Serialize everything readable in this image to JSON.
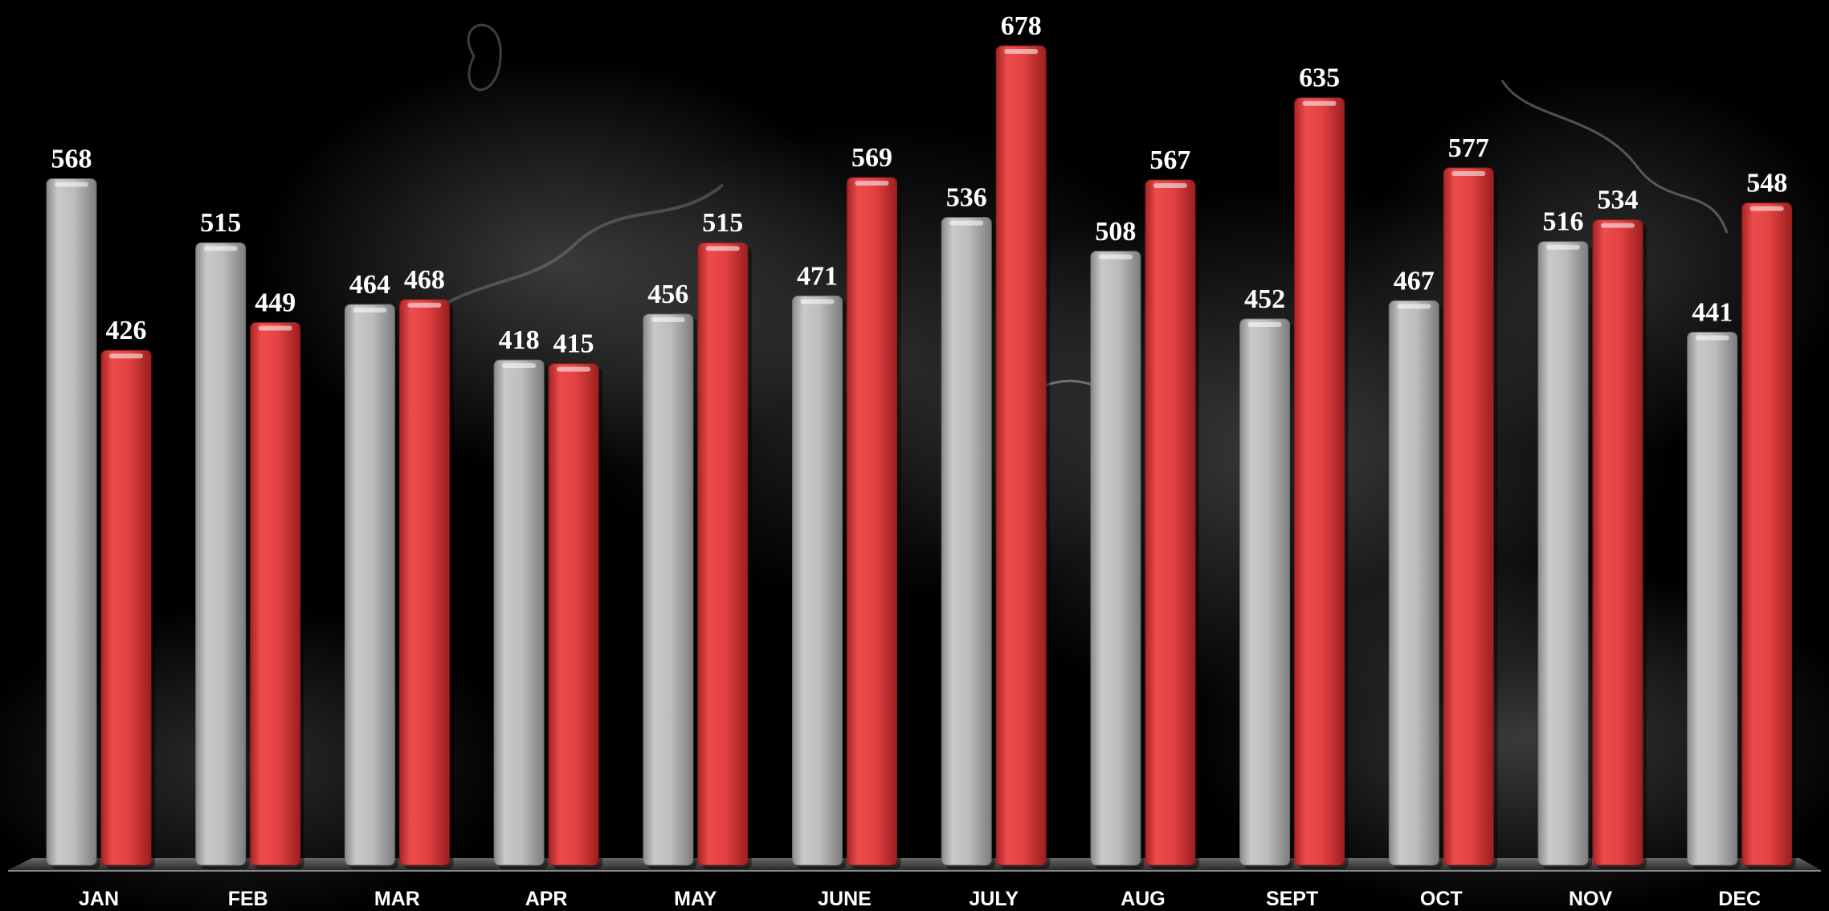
{
  "chart_data": {
    "type": "bar",
    "categories": [
      "JAN",
      "FEB",
      "MAR",
      "APR",
      "MAY",
      "JUNE",
      "JULY",
      "AUG",
      "SEPT",
      "OCT",
      "NOV",
      "DEC"
    ],
    "series": [
      {
        "values": [
          568,
          515,
          464,
          418,
          456,
          471,
          536,
          508,
          452,
          467,
          516,
          441
        ],
        "color": "#b4b4b4"
      },
      {
        "values": [
          426,
          449,
          468,
          415,
          515,
          569,
          678,
          567,
          635,
          577,
          534,
          548
        ],
        "color": "#e04040"
      }
    ],
    "title": "",
    "xlabel": "",
    "ylabel": "",
    "ylim": [
      0,
      720
    ],
    "grid": false,
    "legend": "none",
    "background": "#000000"
  }
}
